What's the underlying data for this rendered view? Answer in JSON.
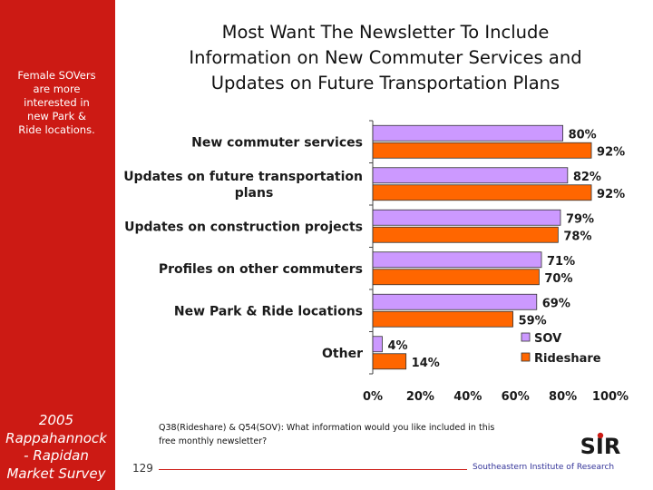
{
  "sidebar": {
    "note_lines": [
      "Female SOVers",
      "are more",
      "interested in",
      "new Park &",
      "Ride locations."
    ],
    "survey_lines": [
      "2005",
      "Rappahannock",
      "- Rapidan",
      "Market Survey"
    ]
  },
  "title_lines": [
    "Most Want The Newsletter To Include",
    "Information on New Commuter Services and",
    "Updates on Future Transportation Plans"
  ],
  "footnote_lines": [
    "Q38(Rideshare) & Q54(SOV): What information would you like included in this",
    "free monthly newsletter?"
  ],
  "footer": {
    "page_number": "129",
    "organization": "Southeastern Institute of Research",
    "logo_text": "SIR"
  },
  "colors": {
    "sov": "#cc99ff",
    "rideshare": "#ff6600",
    "accent": "#cc1a14"
  },
  "chart_data": {
    "type": "bar",
    "orientation": "horizontal",
    "categories": [
      [
        "New commuter services"
      ],
      [
        "Updates on future transportation",
        "plans"
      ],
      [
        "Updates on construction projects"
      ],
      [
        "Profiles on other commuters"
      ],
      [
        "New Park & Ride locations"
      ],
      [
        "Other"
      ]
    ],
    "series": [
      {
        "name": "SOV",
        "values": [
          80,
          82,
          79,
          71,
          69,
          4
        ],
        "labels": [
          "80%",
          "82%",
          "79%",
          "71%",
          "69%",
          "4%"
        ]
      },
      {
        "name": "Rideshare",
        "values": [
          92,
          92,
          78,
          70,
          59,
          14
        ],
        "labels": [
          "92%",
          "92%",
          "78%",
          "70%",
          "59%",
          "14%"
        ]
      }
    ],
    "xlim": [
      0,
      100
    ],
    "xticks": [
      "0%",
      "20%",
      "40%",
      "60%",
      "80%",
      "100%"
    ],
    "legend_position": "bottom-right",
    "grid": false
  }
}
